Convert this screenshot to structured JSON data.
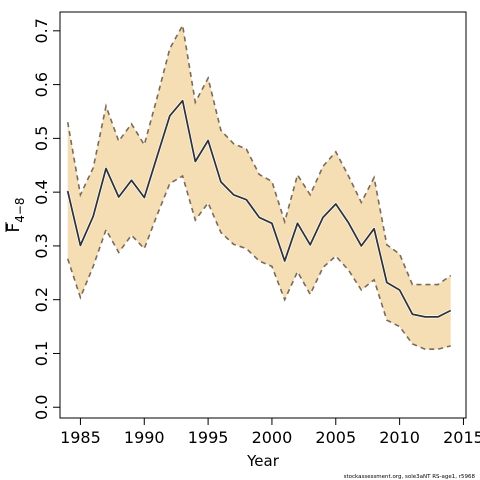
{
  "chart_data": {
    "type": "line",
    "xlabel": "Year",
    "ylabel_main": "F",
    "ylabel_sub": "4−8",
    "xlim": [
      1983.4,
      2015.2
    ],
    "ylim": [
      -0.02,
      0.735
    ],
    "x_ticks": [
      1985,
      1990,
      1995,
      2000,
      2005,
      2010,
      2015
    ],
    "y_ticks": [
      0.0,
      0.1,
      0.2,
      0.3,
      0.4,
      0.5,
      0.6,
      0.7
    ],
    "x_tick_labels": [
      "1985",
      "1990",
      "1995",
      "2000",
      "2005",
      "2010",
      "2015"
    ],
    "y_tick_labels": [
      "0.0",
      "0.1",
      "0.2",
      "0.3",
      "0.4",
      "0.5",
      "0.6",
      "0.7"
    ],
    "grid": false,
    "colors": {
      "band": "#f5deb3",
      "line": "#333333",
      "bound": "#7a6a5a",
      "frame": "#000000"
    },
    "x": [
      1984,
      1985,
      1986,
      1987,
      1988,
      1989,
      1990,
      1991,
      1992,
      1993,
      1994,
      1995,
      1996,
      1997,
      1998,
      1999,
      2000,
      2001,
      2002,
      2003,
      2004,
      2005,
      2006,
      2007,
      2008,
      2009,
      2010,
      2011,
      2012,
      2013,
      2014
    ],
    "series": [
      {
        "role": "estimate",
        "values": [
          0.402,
          0.301,
          0.355,
          0.444,
          0.391,
          0.422,
          0.39,
          0.466,
          0.542,
          0.57,
          0.457,
          0.496,
          0.419,
          0.395,
          0.386,
          0.353,
          0.342,
          0.272,
          0.342,
          0.302,
          0.353,
          0.378,
          0.343,
          0.3,
          0.332,
          0.232,
          0.218,
          0.173,
          0.168,
          0.168,
          0.18
        ]
      },
      {
        "role": "upper",
        "values": [
          0.53,
          0.395,
          0.445,
          0.56,
          0.495,
          0.527,
          0.488,
          0.575,
          0.667,
          0.71,
          0.567,
          0.612,
          0.515,
          0.49,
          0.48,
          0.433,
          0.42,
          0.345,
          0.432,
          0.395,
          0.448,
          0.475,
          0.43,
          0.381,
          0.427,
          0.302,
          0.285,
          0.228,
          0.228,
          0.228,
          0.245
        ]
      },
      {
        "role": "lower",
        "values": [
          0.276,
          0.204,
          0.262,
          0.33,
          0.288,
          0.32,
          0.295,
          0.357,
          0.416,
          0.43,
          0.348,
          0.38,
          0.325,
          0.303,
          0.295,
          0.272,
          0.262,
          0.2,
          0.252,
          0.21,
          0.26,
          0.281,
          0.255,
          0.218,
          0.237,
          0.162,
          0.15,
          0.118,
          0.108,
          0.108,
          0.114
        ]
      }
    ]
  },
  "footnote": "stockassessment.org, sole3aNT RS-age1, r5968"
}
